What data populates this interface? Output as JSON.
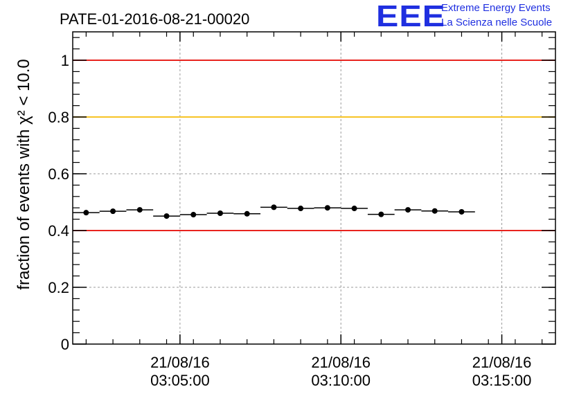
{
  "title": "PATE-01-2016-08-21-00020",
  "logo": {
    "letters": "EEE",
    "line1": "Extreme Energy Events",
    "line2": "La Scienza nelle Scuole",
    "color": "#1f2fe0"
  },
  "chart_data": {
    "type": "scatter",
    "title": "PATE-01-2016-08-21-00020",
    "ylabel": "fraction of events with χ² < 10.0",
    "xlabel": "",
    "xlim": [
      "21/08/16 03:01:40",
      "21/08/16 03:16:40"
    ],
    "ylim": [
      0,
      1.1
    ],
    "x_ticks": [
      {
        "date": "21/08/16",
        "time": "03:05:00"
      },
      {
        "date": "21/08/16",
        "time": "03:10:00"
      },
      {
        "date": "21/08/16",
        "time": "03:15:00"
      }
    ],
    "y_ticks": [
      "0",
      "0.2",
      "0.4",
      "0.6",
      "0.8",
      "1"
    ],
    "grid": true,
    "bin_width_seconds": 50,
    "series": [
      {
        "points": [
          {
            "x": "03:02:05",
            "y": 0.463
          },
          {
            "x": "03:02:55",
            "y": 0.468
          },
          {
            "x": "03:03:45",
            "y": 0.473
          },
          {
            "x": "03:04:35",
            "y": 0.451
          },
          {
            "x": "03:05:25",
            "y": 0.456
          },
          {
            "x": "03:06:15",
            "y": 0.461
          },
          {
            "x": "03:07:05",
            "y": 0.459
          },
          {
            "x": "03:07:55",
            "y": 0.482
          },
          {
            "x": "03:08:45",
            "y": 0.478
          },
          {
            "x": "03:09:35",
            "y": 0.48
          },
          {
            "x": "03:10:25",
            "y": 0.478
          },
          {
            "x": "03:11:15",
            "y": 0.457
          },
          {
            "x": "03:12:05",
            "y": 0.473
          },
          {
            "x": "03:12:55",
            "y": 0.469
          },
          {
            "x": "03:13:45",
            "y": 0.466
          }
        ],
        "color": "#000000"
      }
    ],
    "reference_lines": [
      {
        "y": 1.0,
        "color": "#e8231e"
      },
      {
        "y": 0.8,
        "color": "#f7c325"
      },
      {
        "y": 0.4,
        "color": "#e8231e"
      }
    ]
  }
}
